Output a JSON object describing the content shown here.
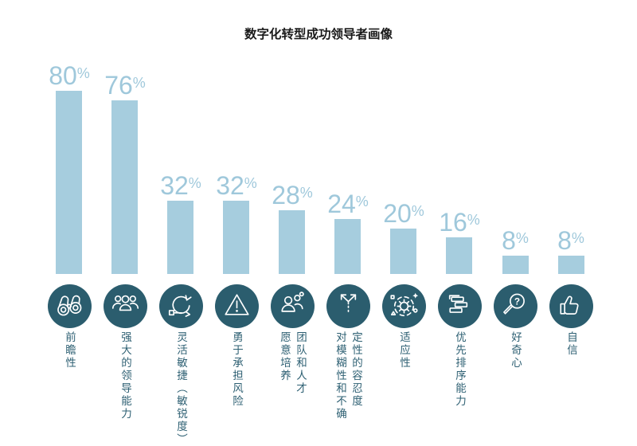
{
  "title": "数字化转型成功领导者画像",
  "colors": {
    "bar": "#a6cdde",
    "value_label": "#9fc8db",
    "icon_circle": "#2b5d6e",
    "category_label": "#2e6073",
    "title": "#1a1a1a",
    "background": "#ffffff",
    "icon_stroke": "#ffffff"
  },
  "chart_data": {
    "type": "bar",
    "title": "数字化转型成功领导者画像",
    "unit": "%",
    "ylim": [
      0,
      100
    ],
    "grid": false,
    "legend": false,
    "categories": [
      "前瞻性",
      "强大的领导能力",
      "灵活敏捷（敏锐度）",
      "勇于承担风险",
      "团队和人才愿意培养",
      "定性的容忍度对模糊性和不确",
      "适应性",
      "优先排序能力",
      "好奇心",
      "自信"
    ],
    "values": [
      80,
      76,
      32,
      32,
      28,
      24,
      20,
      16,
      8,
      8
    ],
    "display_labels": [
      "前瞻性",
      "强大的领导能力",
      "灵活敏捷（敏锐度）",
      "勇于承担风险",
      "团队和人才\n愿意培养",
      "定性的容忍度\n对模糊性和不确",
      "适应性",
      "优先排序能力",
      "好奇心",
      "自信"
    ],
    "icons": [
      "binoculars-icon",
      "team-leadership-icon",
      "agile-cycle-icon",
      "warning-triangle-icon",
      "talent-development-icon",
      "branching-arrows-icon",
      "adaptability-gear-icon",
      "priority-stack-icon",
      "curiosity-magnifier-icon",
      "thumbs-up-icon"
    ]
  }
}
